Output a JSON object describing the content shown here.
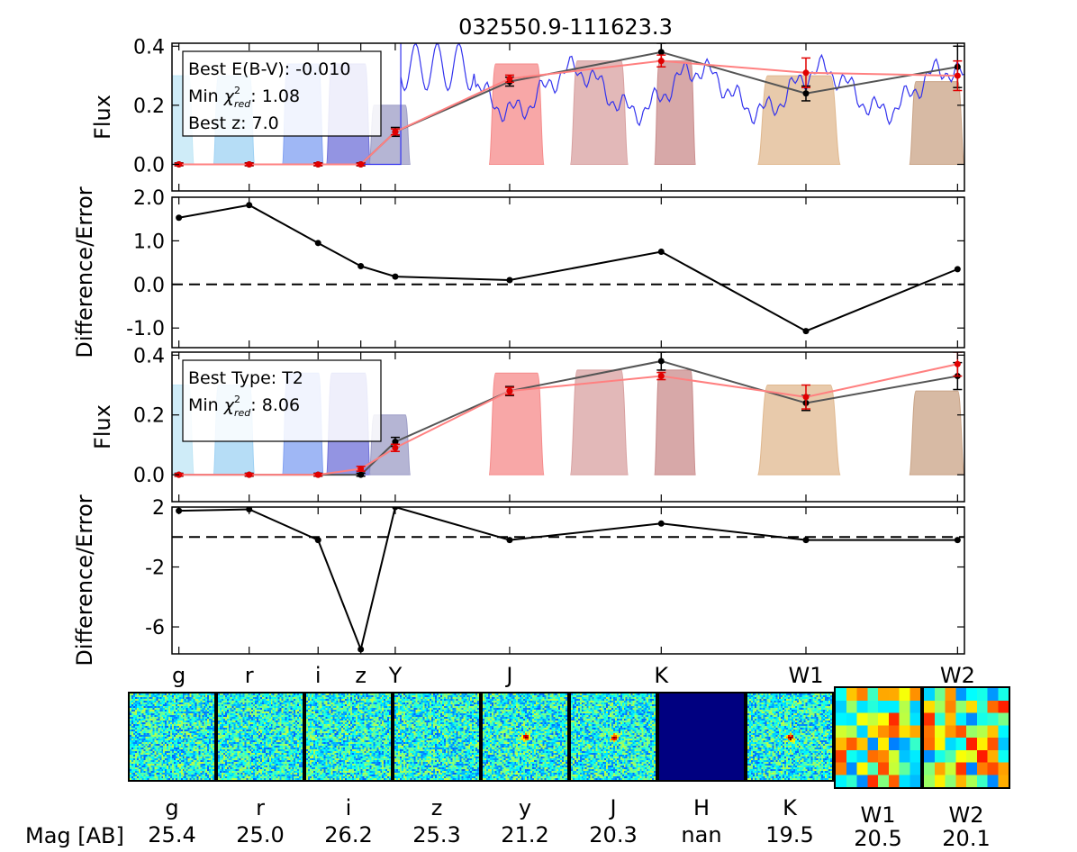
{
  "figure": {
    "title": "032550.9-111623.3"
  },
  "colors": {
    "model_grey": "#555555",
    "model_red": "#ff8080",
    "obs_black": "#000000",
    "obs_red": "#e00000",
    "spectrum": "#3333ee"
  },
  "chart_data": [
    {
      "type": "line",
      "panel": "top-flux",
      "ylabel": "Flux",
      "ylim": [
        -0.09,
        0.41
      ],
      "yticks": [
        0.0,
        0.2,
        0.4
      ],
      "yticklabels": [
        "0.0",
        "0.2",
        "0.4"
      ],
      "annotation": {
        "line1": "Best E(B-V): -0.010",
        "line2_prefix": "Min ",
        "line2_symbol": "χ",
        "line2_sup": "2",
        "line2_sub": "red",
        "line2_value": ": 1.08",
        "line3": "Best z: 7.0"
      },
      "series": [
        {
          "points": [
            0.0,
            0.0,
            0.0,
            0.0,
            0.11,
            0.28,
            0.38,
            0.24,
            0.33
          ],
          "errors": [
            0.005,
            0.005,
            0.005,
            0.005,
            0.015,
            0.015,
            0.03,
            0.025,
            0.07
          ],
          "color": "#555555"
        },
        {
          "points": [
            0.0,
            0.0,
            0.0,
            0.0,
            0.11,
            0.29,
            0.35,
            0.31,
            0.3
          ],
          "errors": [
            0.004,
            0.004,
            0.004,
            0.004,
            0.01,
            0.012,
            0.02,
            0.05,
            0.05
          ],
          "color": "#ff8080"
        }
      ]
    },
    {
      "type": "line",
      "panel": "top-residual",
      "ylabel": "Difference/Error",
      "ylim": [
        -1.45,
        2.0
      ],
      "yticks": [
        -1.0,
        0.0,
        1.0,
        2.0
      ],
      "yticklabels": [
        "-1.0",
        "0.0",
        "1.0",
        "2.0"
      ],
      "series": [
        {
          "points": [
            1.53,
            1.82,
            0.95,
            0.42,
            0.18,
            0.1,
            0.75,
            -1.07,
            0.35
          ]
        }
      ],
      "zero_line": true
    },
    {
      "type": "line",
      "panel": "bottom-flux",
      "ylabel": "Flux",
      "ylim": [
        -0.09,
        0.41
      ],
      "yticks": [
        0.0,
        0.2,
        0.4
      ],
      "yticklabels": [
        "0.0",
        "0.2",
        "0.4"
      ],
      "annotation": {
        "line1": "Best Type: T2",
        "line2_prefix": "Min ",
        "line2_symbol": "χ",
        "line2_sup": "2",
        "line2_sub": "red",
        "line2_value": ": 8.06"
      },
      "series": [
        {
          "points": [
            0.0,
            0.0,
            0.0,
            0.0,
            0.11,
            0.28,
            0.38,
            0.24,
            0.33
          ],
          "errors": [
            0.005,
            0.005,
            0.005,
            0.005,
            0.015,
            0.015,
            0.03,
            0.025,
            0.045
          ],
          "color": "#555555"
        },
        {
          "points": [
            0.0,
            0.0,
            0.0,
            0.02,
            0.09,
            0.28,
            0.33,
            0.26,
            0.37
          ],
          "errors": [
            0.004,
            0.004,
            0.004,
            0.008,
            0.012,
            0.012,
            0.012,
            0.04,
            0.04
          ],
          "color": "#ff8080"
        }
      ]
    },
    {
      "type": "line",
      "panel": "bottom-residual",
      "ylabel": "Difference/Error",
      "ylim": [
        -7.8,
        2.0
      ],
      "yticks": [
        -6,
        -2,
        2
      ],
      "yticklabels": [
        "-6",
        "-2",
        "2"
      ],
      "series": [
        {
          "points": [
            1.75,
            1.85,
            -0.2,
            -7.5,
            2.0,
            -0.2,
            0.9,
            -0.2,
            -0.2
          ]
        }
      ],
      "zero_line": true
    }
  ],
  "x_positions": [
    0.05,
    0.56,
    1.06,
    1.37,
    1.62,
    2.45,
    3.55,
    4.6,
    5.7
  ],
  "xlim": [
    0.0,
    5.75
  ],
  "band_labels": [
    "g",
    "r",
    "i",
    "z",
    "Y",
    "J",
    "K",
    "W1",
    "W2"
  ],
  "filters": [
    {
      "c": 0.0,
      "w": 0.32,
      "h": 0.3,
      "color": "#bfe6f5"
    },
    {
      "c": 0.45,
      "w": 0.3,
      "h": 0.3,
      "color": "#9ed1f3"
    },
    {
      "c": 0.95,
      "w": 0.3,
      "h": 0.34,
      "color": "#7f9ff2"
    },
    {
      "c": 1.28,
      "w": 0.32,
      "h": 0.34,
      "color": "#6f70d8"
    },
    {
      "c": 1.58,
      "w": 0.3,
      "h": 0.2,
      "color": "#9c9cc6"
    },
    {
      "c": 2.5,
      "w": 0.4,
      "h": 0.34,
      "color": "#f58a8a"
    },
    {
      "c": 3.1,
      "w": 0.42,
      "h": 0.35,
      "color": "#d8a0a0"
    },
    {
      "c": 3.65,
      "w": 0.3,
      "h": 0.35,
      "color": "#c98b8b"
    },
    {
      "c": 4.55,
      "w": 0.6,
      "h": 0.3,
      "color": "#e0b88f"
    },
    {
      "c": 5.55,
      "w": 0.4,
      "h": 0.28,
      "color": "#c9a386"
    }
  ],
  "cutouts": [
    {
      "band": "g",
      "mag": "25.4"
    },
    {
      "band": "r",
      "mag": "25.0"
    },
    {
      "band": "i",
      "mag": "26.2"
    },
    {
      "band": "z",
      "mag": "25.3"
    },
    {
      "band": "y",
      "mag": "21.2"
    },
    {
      "band": "J",
      "mag": "20.3"
    },
    {
      "band": "H",
      "mag": "nan"
    },
    {
      "band": "K",
      "mag": "19.5"
    },
    {
      "band": "W1",
      "mag": "20.5"
    },
    {
      "band": "W2",
      "mag": "20.1"
    }
  ],
  "mag_label": "Mag [AB]"
}
